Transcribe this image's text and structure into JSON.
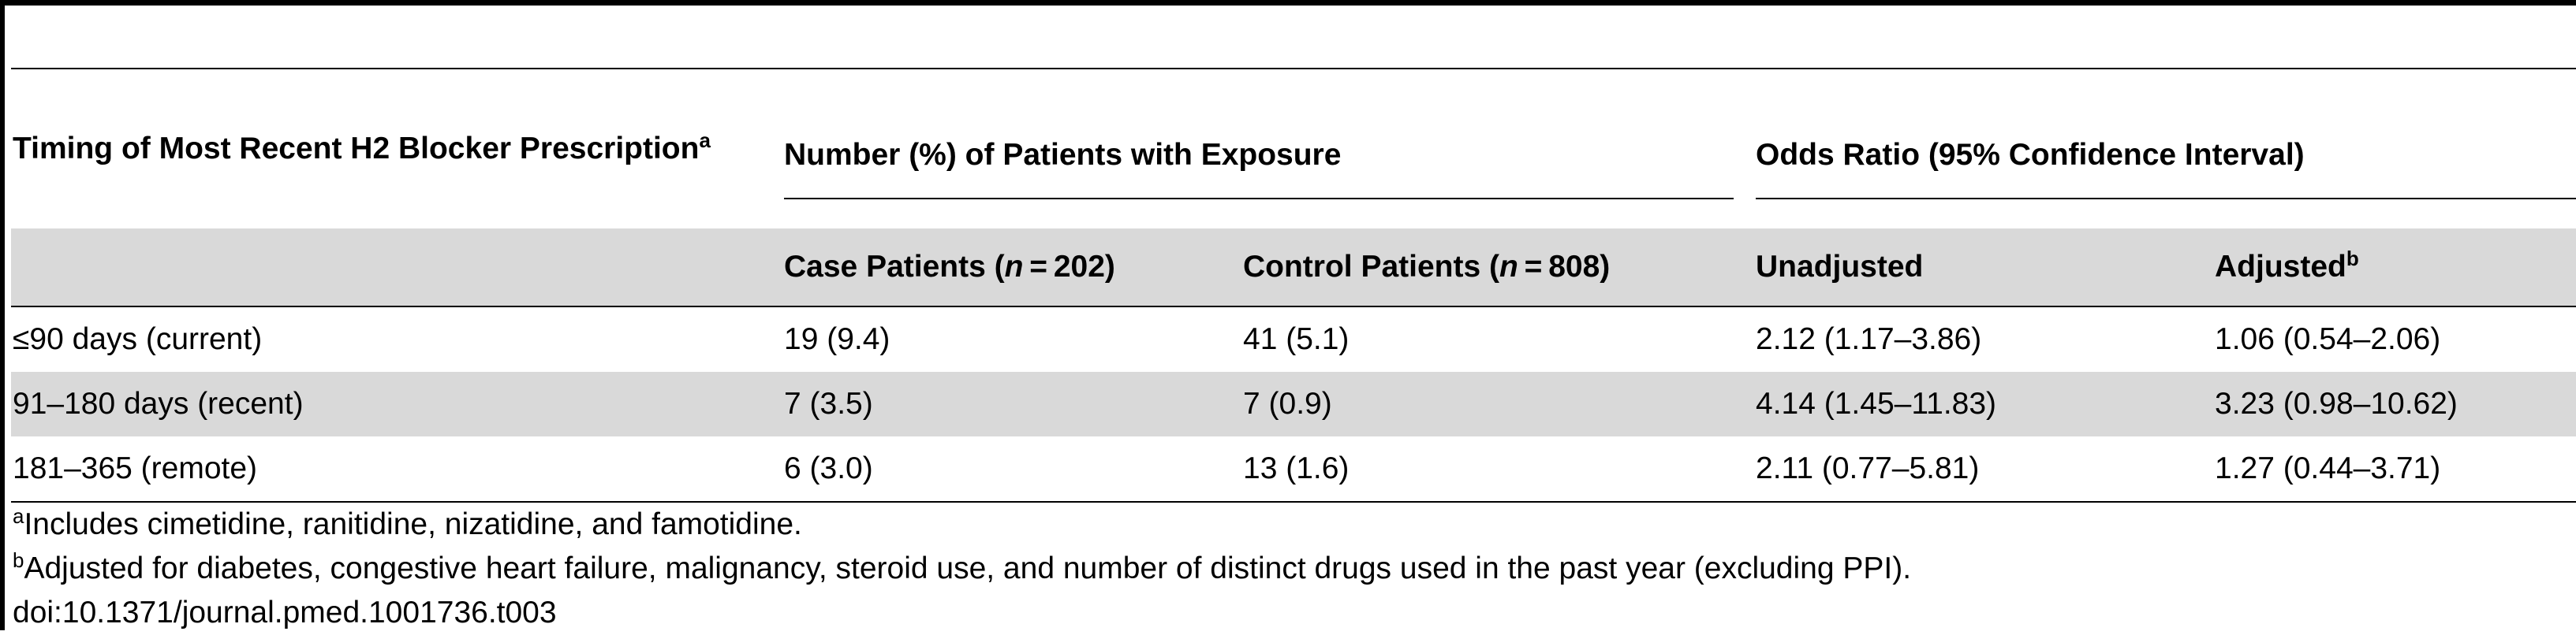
{
  "table": {
    "header": {
      "timing_label": "Timing of Most Recent H2 Blocker Prescription",
      "timing_sup": "a",
      "exposure_group": "Number (%) of Patients with Exposure",
      "odds_group": "Odds Ratio (95% Confidence Interval)",
      "case_label_prefix": "Case Patients (",
      "case_n_symbol": "n",
      "case_label_suffix": " = 202)",
      "control_label_prefix": "Control Patients (",
      "control_n_symbol": "n",
      "control_label_suffix": " = 808)",
      "unadjusted_label": "Unadjusted",
      "adjusted_label": "Adjusted",
      "adjusted_sup": "b"
    },
    "rows": [
      {
        "timing": "≤90 days (current)",
        "case": "19 (9.4)",
        "control": "41 (5.1)",
        "unadjusted": "2.12 (1.17–3.86)",
        "adjusted": "1.06 (0.54–2.06)"
      },
      {
        "timing": "91–180 days (recent)",
        "case": "7 (3.5)",
        "control": "7 (0.9)",
        "unadjusted": "4.14 (1.45–11.83)",
        "adjusted": "3.23 (0.98–10.62)"
      },
      {
        "timing": "181–365 (remote)",
        "case": "6 (3.0)",
        "control": "13 (1.6)",
        "unadjusted": "2.11 (0.77–5.81)",
        "adjusted": "1.27 (0.44–3.71)"
      }
    ]
  },
  "footnotes": {
    "a_marker": "a",
    "a_text": "Includes cimetidine, ranitidine, nizatidine, and famotidine.",
    "b_marker": "b",
    "b_text": "Adjusted for diabetes, congestive heart failure, malignancy, steroid use, and number of distinct drugs used in the past year (excluding PPI).",
    "doi": "doi:10.1371/journal.pmed.1001736.t003"
  },
  "colors": {
    "rule": "#000000",
    "shade": "#d9d9d9",
    "background": "#ffffff"
  }
}
